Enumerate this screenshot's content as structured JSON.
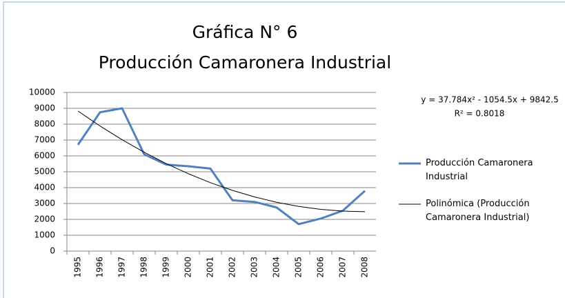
{
  "chart_data": {
    "type": "line",
    "title": "Gráfica N° 6",
    "subtitle": "Producción Camaronera Industrial",
    "categories": [
      "1995",
      "1996",
      "1997",
      "1998",
      "1999",
      "2000",
      "2001",
      "2002",
      "2003",
      "2004",
      "2005",
      "2006",
      "2007",
      "2008"
    ],
    "series": [
      {
        "name": "Producción Camaronera Industrial",
        "color": "#4f81bd",
        "values": [
          6700,
          8750,
          9000,
          6100,
          5450,
          5350,
          5200,
          3200,
          3100,
          2750,
          1700,
          2050,
          2550,
          3800
        ]
      },
      {
        "name": "Polinómica (Producción Camaronera Industrial)",
        "color": "#000000",
        "values": [
          8826,
          7885,
          7019,
          6229,
          5515,
          4876,
          4312,
          3825,
          3413,
          3076,
          2815,
          2629,
          2520,
          2485
        ]
      }
    ],
    "annotations": [
      "y = 37.784x² - 1054.5x + 9842.5",
      "R² = 0.8018"
    ],
    "ylim": [
      0,
      10000
    ],
    "yticks": [
      0,
      1000,
      2000,
      3000,
      4000,
      5000,
      6000,
      7000,
      8000,
      9000,
      10000
    ],
    "grid": true
  }
}
